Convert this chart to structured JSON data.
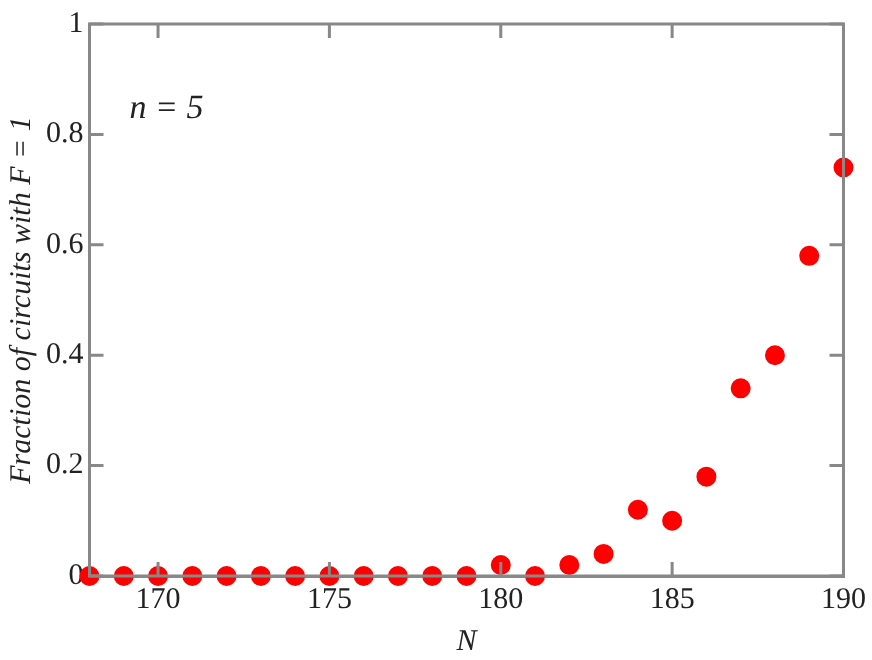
{
  "chart_data": {
    "type": "scatter",
    "xlabel": "N",
    "ylabel": "Fraction of circuits with F = 1",
    "annotations": [
      "n = 5"
    ],
    "x": [
      168,
      169,
      170,
      171,
      172,
      173,
      174,
      175,
      176,
      177,
      178,
      179,
      180,
      181,
      182,
      183,
      184,
      185,
      186,
      187,
      188,
      189,
      190
    ],
    "series": [
      {
        "color": "#ff0000",
        "values": [
          0,
          0,
          0,
          0,
          0,
          0,
          0,
          0,
          0,
          0,
          0,
          0,
          0.02,
          0,
          0.02,
          0.04,
          0.12,
          0.1,
          0.18,
          0.34,
          0.4,
          0.58,
          0.74
        ]
      }
    ],
    "xlim": [
      168,
      190
    ],
    "xticks": [
      170,
      175,
      180,
      185,
      190
    ],
    "ylim": [
      0,
      1
    ],
    "yticks": [
      0,
      0.2,
      0.4,
      0.6,
      0.8,
      1
    ],
    "grid": false,
    "legend": false,
    "marker": "circle"
  }
}
